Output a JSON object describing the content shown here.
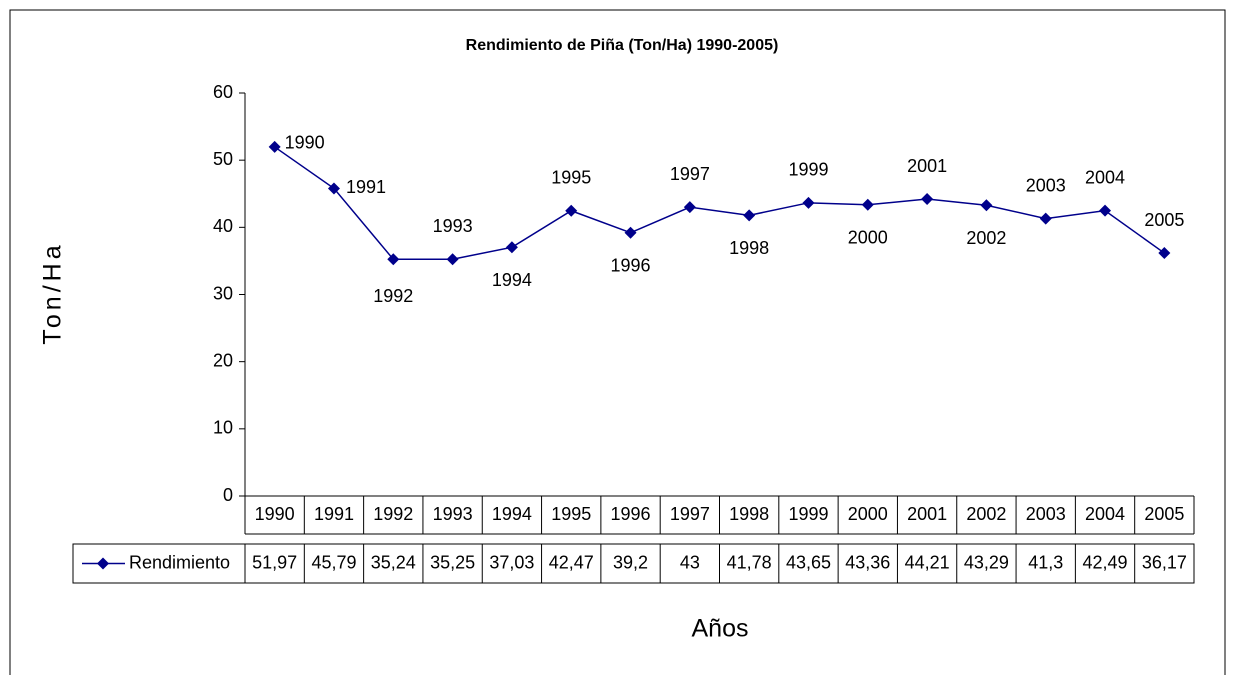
{
  "chart_data": {
    "type": "line",
    "title": "Rendimiento de Piña (Ton/Ha) 1990-2005)",
    "y_label": "Ton/Ha",
    "x_label": "Años",
    "categories": [
      "1990",
      "1991",
      "1992",
      "1993",
      "1994",
      "1995",
      "1996",
      "1997",
      "1998",
      "1999",
      "2000",
      "2001",
      "2002",
      "2003",
      "2004",
      "2005"
    ],
    "series": [
      {
        "name": "Rendimiento",
        "color": "#00008b",
        "values": [
          51.97,
          45.79,
          35.24,
          35.25,
          37.03,
          42.47,
          39.2,
          43,
          41.78,
          43.65,
          43.36,
          44.21,
          43.29,
          41.3,
          42.49,
          36.17
        ],
        "value_labels": [
          "51,97",
          "45,79",
          "35,24",
          "35,25",
          "37,03",
          "42,47",
          "39,2",
          "43",
          "41,78",
          "43,65",
          "43,36",
          "44,21",
          "43,29",
          "41,3",
          "42,49",
          "36,17"
        ]
      }
    ],
    "ylim": [
      0,
      60
    ],
    "yticks": [
      0,
      10,
      20,
      30,
      40,
      50,
      60
    ],
    "grid": false,
    "data_table": true
  }
}
